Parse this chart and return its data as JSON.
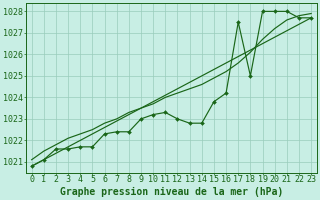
{
  "title": "Graphe pression niveau de la mer (hPa)",
  "hours": [
    0,
    1,
    2,
    3,
    4,
    5,
    6,
    7,
    8,
    9,
    10,
    11,
    12,
    13,
    14,
    15,
    16,
    17,
    18,
    19,
    20,
    21,
    22,
    23
  ],
  "data_line": [
    1020.8,
    1021.1,
    1021.6,
    1021.6,
    1021.7,
    1021.7,
    1022.3,
    1022.4,
    1022.4,
    1023.0,
    1023.2,
    1023.3,
    1023.0,
    1022.8,
    1022.8,
    1023.8,
    1024.2,
    1027.5,
    1025.0,
    1028.0,
    1028.0,
    1028.0,
    1027.7,
    1027.7
  ],
  "smooth_line": [
    1021.1,
    1021.5,
    1021.8,
    1022.1,
    1022.3,
    1022.5,
    1022.8,
    1023.0,
    1023.3,
    1023.5,
    1023.7,
    1024.0,
    1024.2,
    1024.4,
    1024.6,
    1024.9,
    1025.2,
    1025.6,
    1026.1,
    1026.7,
    1027.2,
    1027.6,
    1027.8,
    1027.9
  ],
  "ylim": [
    1020.5,
    1028.4
  ],
  "yticks": [
    1021,
    1022,
    1023,
    1024,
    1025,
    1026,
    1027,
    1028
  ],
  "line_color": "#1a6618",
  "bg_color": "#c8eee4",
  "grid_color": "#99ccbb",
  "title_fontsize": 7,
  "tick_fontsize": 6
}
